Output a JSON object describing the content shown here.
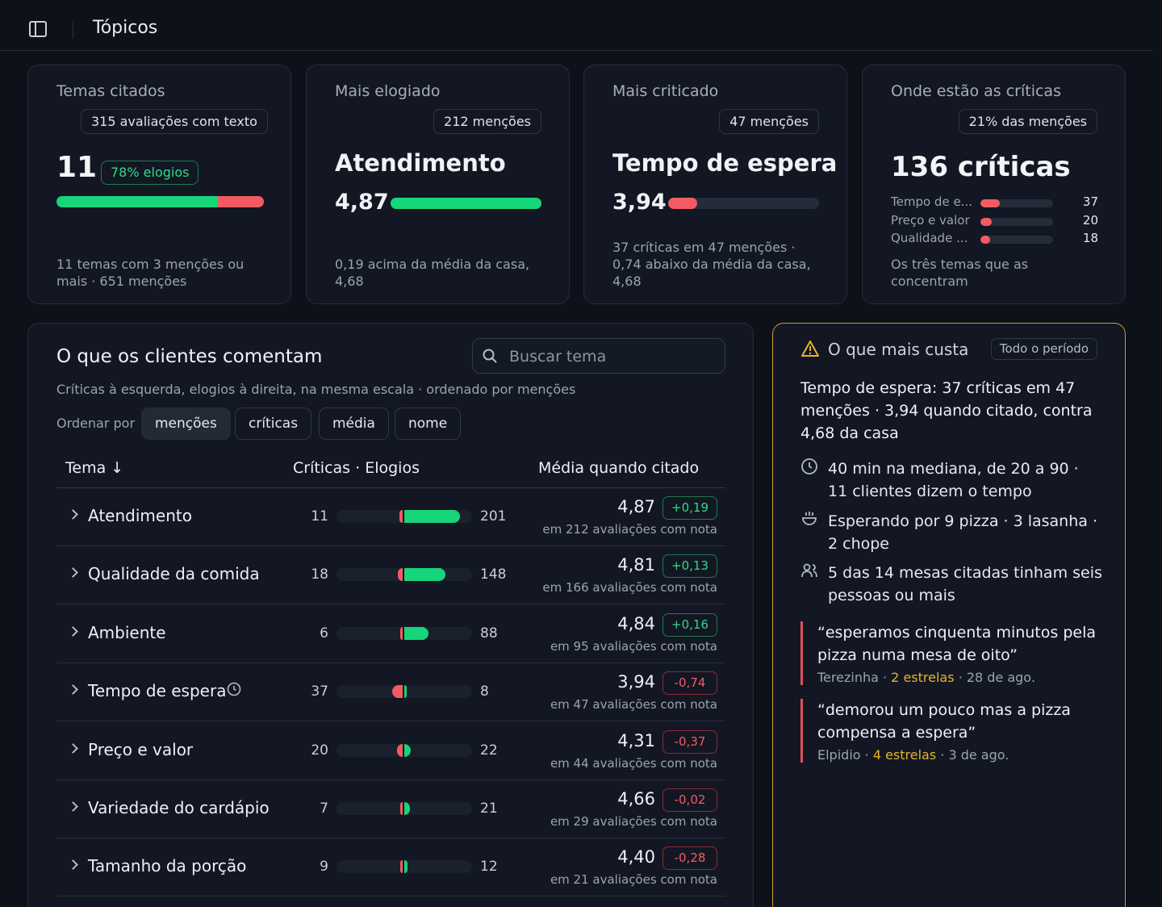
{
  "topbar": {
    "title": "Tópicos"
  },
  "cards": [
    {
      "title": "Temas citados",
      "pill": "315 avaliações com texto",
      "value": "11",
      "badge": "78% elogios",
      "bar_green_fraction": 0.78,
      "foot": "11 temas com 3 menções ou mais · 651 menções"
    },
    {
      "title": "Mais elogiado",
      "pill": "212 menções",
      "headline": "Atendimento",
      "score": "4,87",
      "bar_fraction": 1.0,
      "foot": "0,19 acima da média da casa, 4,68"
    },
    {
      "title": "Mais criticado",
      "pill": "47 menções",
      "headline": "Tempo de espera",
      "score": "3,94",
      "bar_fraction": 0.19,
      "foot": "37 críticas em 47 menções · 0,74 abaixo da média da casa, 4,68"
    },
    {
      "title": "Onde estão as críticas",
      "pill": "21% das menções",
      "value": "136 críticas",
      "rows": [
        {
          "label": "Tempo de e...",
          "value": "37",
          "fraction": 0.27
        },
        {
          "label": "Preço e valor",
          "value": "20",
          "fraction": 0.15
        },
        {
          "label": "Qualidade ...",
          "value": "18",
          "fraction": 0.13
        }
      ],
      "foot": "Os três temas que as concentram"
    }
  ],
  "main": {
    "title": "O que os clientes comentam",
    "search_placeholder": "Buscar tema",
    "subtitle": "Críticas à esquerda, elogios à direita, na mesma escala · ordenado por menções",
    "sort_label": "Ordenar por",
    "sort_options": [
      "menções",
      "críticas",
      "média",
      "nome"
    ],
    "columns": [
      "Tema ↓",
      "Críticas · Elogios",
      "Média quando citado"
    ],
    "rows": [
      {
        "topic": "Atendimento",
        "criticas": 11,
        "elogios": 201,
        "avg": "4,87",
        "delta": "+0,19",
        "positive": true,
        "sub": "em 212 avaliações com nota"
      },
      {
        "topic": "Qualidade da comida",
        "criticas": 18,
        "elogios": 148,
        "avg": "4,81",
        "delta": "+0,13",
        "positive": true,
        "sub": "em 166 avaliações com nota"
      },
      {
        "topic": "Ambiente",
        "criticas": 6,
        "elogios": 88,
        "avg": "4,84",
        "delta": "+0,16",
        "positive": true,
        "sub": "em 95 avaliações com nota"
      },
      {
        "topic": "Tempo de espera",
        "criticas": 37,
        "elogios": 8,
        "avg": "3,94",
        "delta": "-0,74",
        "positive": false,
        "sub": "em 47 avaliações com nota",
        "icon": "clock-icon"
      },
      {
        "topic": "Preço e valor",
        "criticas": 20,
        "elogios": 22,
        "avg": "4,31",
        "delta": "-0,37",
        "positive": false,
        "sub": "em 44 avaliações com nota"
      },
      {
        "topic": "Variedade do cardápio",
        "criticas": 7,
        "elogios": 21,
        "avg": "4,66",
        "delta": "-0,02",
        "positive": false,
        "sub": "em 29 avaliações com nota"
      },
      {
        "topic": "Tamanho da porção",
        "criticas": 9,
        "elogios": 12,
        "avg": "4,40",
        "delta": "-0,28",
        "positive": false,
        "sub": "em 21 avaliações com nota"
      }
    ]
  },
  "side": {
    "title": "O que mais custa",
    "period": "Todo o período",
    "lead": "Tempo de espera: 37 críticas em 47 menções · 3,94 quando citado, contra 4,68 da casa",
    "facts": [
      {
        "icon": "clock-icon",
        "text": "40 min na mediana, de 20 a 90 · 11 clientes dizem o tempo"
      },
      {
        "icon": "food-icon",
        "text": "Esperando por 9 pizza · 3 lasanha · 2 chope"
      },
      {
        "icon": "people-icon",
        "text": "5 das 14 mesas citadas tinham seis pessoas ou mais"
      }
    ],
    "quotes": [
      {
        "text": "“esperamos cinquenta minutos pela pizza numa mesa de oito”",
        "author": "Terezinha",
        "stars": "2 estrelas",
        "date": "28 de ago."
      },
      {
        "text": "“demorou um pouco mas a pizza compensa a espera”",
        "author": "Elpidio",
        "stars": "4 estrelas",
        "date": "3 de ago."
      }
    ]
  },
  "colors": {
    "green": "#16d57a",
    "red": "#f35b63",
    "accent_border": "#c9a227",
    "stars": "#e9b429"
  }
}
